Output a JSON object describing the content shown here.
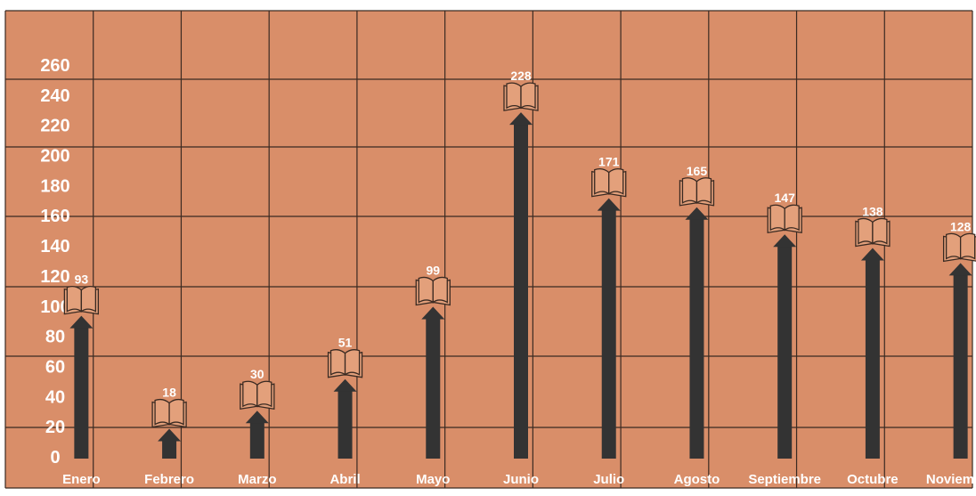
{
  "chart_data": {
    "type": "bar",
    "title": "",
    "xlabel": "",
    "ylabel": "",
    "categories": [
      "Enero",
      "Febrero",
      "Marzo",
      "Abril",
      "Mayo",
      "Junio",
      "Julio",
      "Agosto",
      "Septiembre",
      "Octubre",
      "Noviembre"
    ],
    "values": [
      93,
      18,
      30,
      51,
      99,
      228,
      171,
      165,
      147,
      138,
      128
    ],
    "y_ticks": [
      "0",
      "20",
      "40",
      "60",
      "80",
      "100",
      "120",
      "140",
      "160",
      "180",
      "200",
      "220",
      "240",
      "260"
    ],
    "ylim": [
      0,
      280
    ],
    "grid": true,
    "legend": "none",
    "marker_icon": "open-book-icon",
    "colors": {
      "background": "#D98E69",
      "grid": "#3a2a22",
      "arrow": "#333333",
      "text": "#ffffff",
      "book_fill": "#E3A07B",
      "book_stroke": "#3a2a22"
    }
  }
}
